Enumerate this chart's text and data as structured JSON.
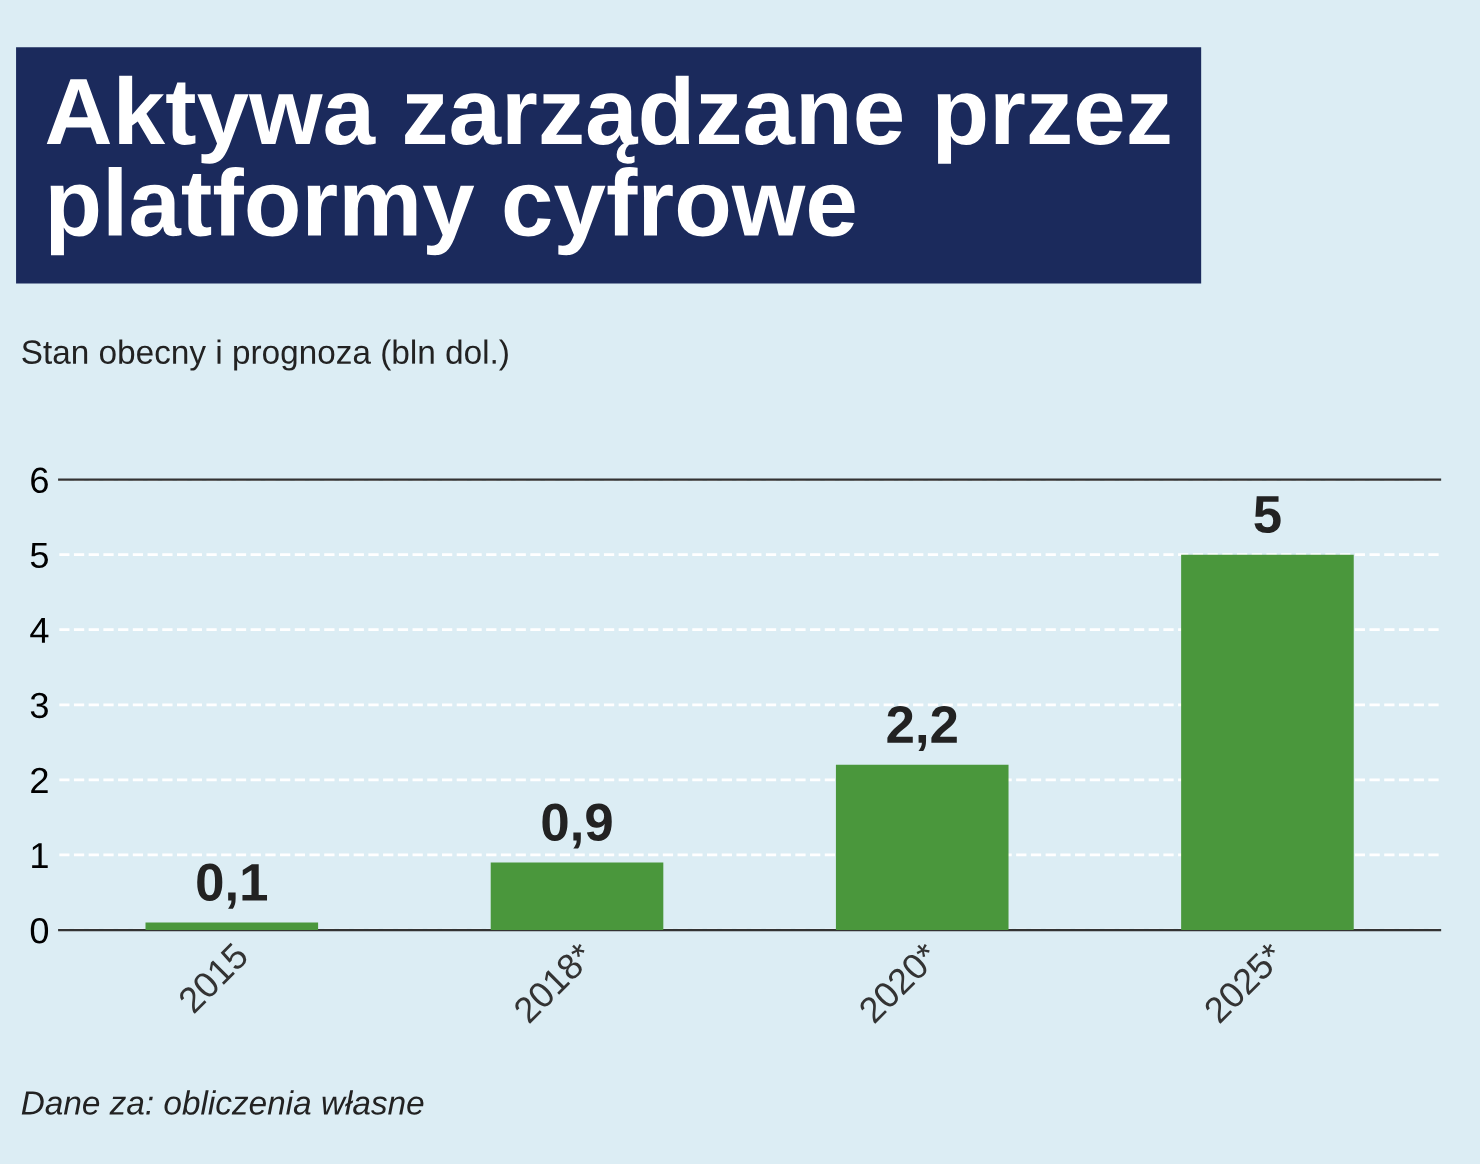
{
  "chart_data": {
    "type": "bar",
    "title": "Aktywa zarządzane przez\nplatformy cyfrowe",
    "subtitle": "Stan obecny i prognoza (bln dol.)",
    "categories": [
      "2015",
      "2018*",
      "2020*",
      "2025*"
    ],
    "values": [
      0.1,
      0.9,
      2.2,
      5
    ],
    "value_labels": [
      "0,1",
      "0,9",
      "2,2",
      "5"
    ],
    "color": "#4a973c",
    "ylim": [
      0,
      6
    ],
    "yticks": [
      0,
      1,
      2,
      3,
      4,
      5,
      6
    ],
    "grid": "y",
    "annotations": [
      "Dane za: obliczenia własne"
    ]
  }
}
